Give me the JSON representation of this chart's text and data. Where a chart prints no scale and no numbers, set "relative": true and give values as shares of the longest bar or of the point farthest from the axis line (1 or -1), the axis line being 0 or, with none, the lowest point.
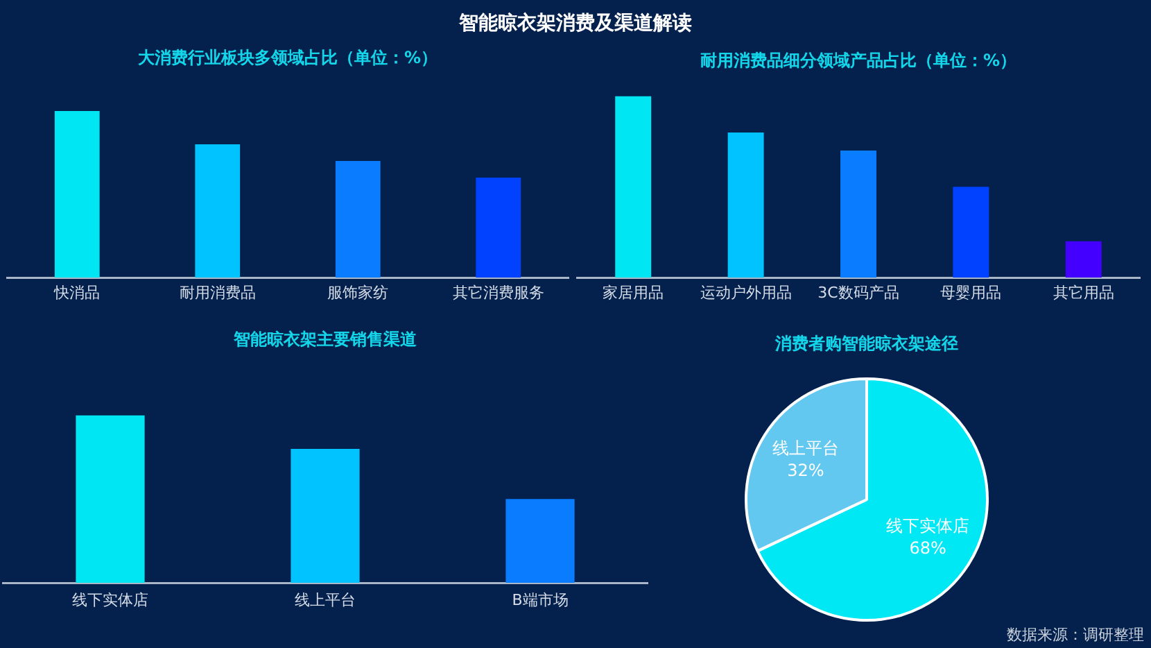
{
  "chart_data": [
    {
      "type": "other",
      "title": "智能晾衣架消费及渠道解读"
    },
    {
      "type": "bar",
      "title": "大消费行业板块多领域占比（单位：%）",
      "categories": [
        "快消品",
        "耐用消费品",
        "服饰家纺",
        "其它消费服务"
      ],
      "values": [
        1,
        0.8,
        0.7,
        0.6
      ],
      "colors": [
        "#00e6f2",
        "#00c3ff",
        "#0a7cff",
        "#0042ff"
      ],
      "relative": true
    },
    {
      "type": "bar",
      "title": "耐用消费品细分领域产品占比（单位：%）",
      "categories": [
        "家居用品",
        "运动户外用品",
        "3C数码产品",
        "母婴用品",
        "其它用品"
      ],
      "values": [
        1,
        0.8,
        0.7,
        0.5,
        0.2
      ],
      "colors": [
        "#00e6f2",
        "#00c3ff",
        "#0a7cff",
        "#0042ff",
        "#4400ff"
      ],
      "relative": true
    },
    {
      "type": "bar",
      "title": "智能晾衣架主要销售渠道",
      "categories": [
        "线下实体店",
        "线上平台",
        "B端市场"
      ],
      "values": [
        1,
        0.8,
        0.5
      ],
      "colors": [
        "#00e6f2",
        "#00c3ff",
        "#0a7cff"
      ],
      "relative": true
    },
    {
      "type": "pie",
      "title": "消费者购智能晾衣架途径",
      "categories": [
        "线下实体店",
        "线上平台"
      ],
      "values": [
        68,
        32
      ],
      "colors": [
        "#00e8f4",
        "#62c8f0"
      ],
      "value_labels": [
        "68%",
        "32%"
      ],
      "annotations": [
        "数据来源：调研整理"
      ]
    }
  ]
}
